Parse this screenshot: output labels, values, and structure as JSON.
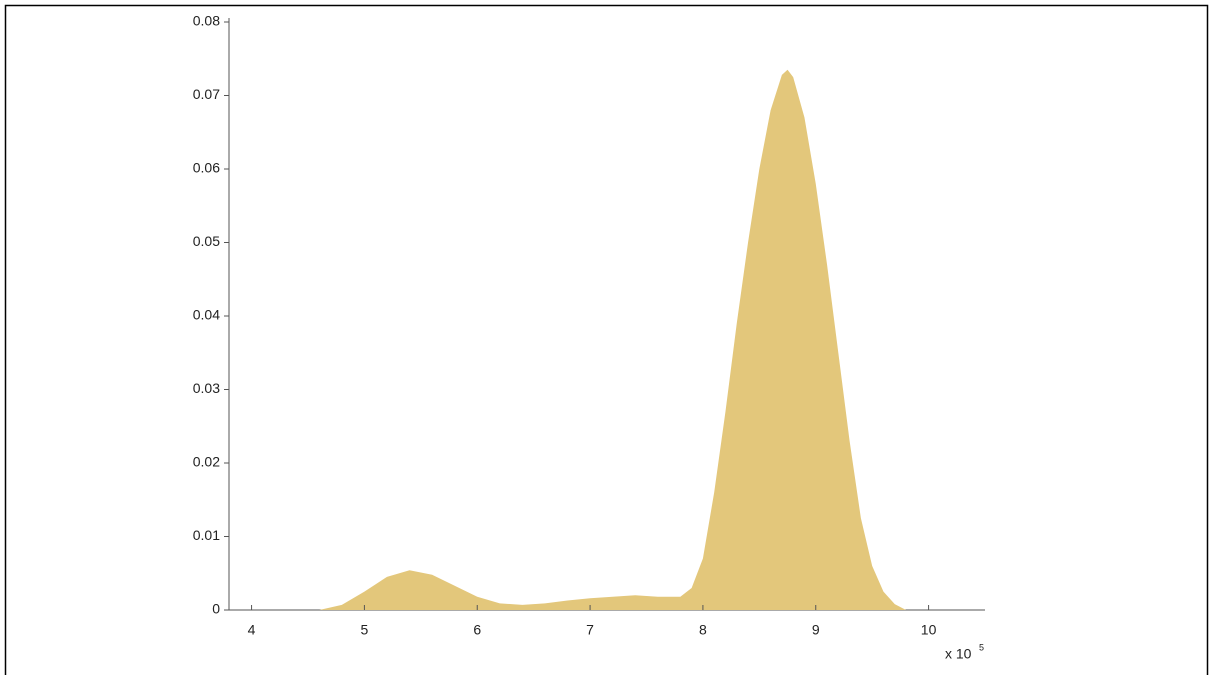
{
  "chart_data": {
    "type": "area",
    "x": [
      4.6,
      4.8,
      5.0,
      5.2,
      5.4,
      5.6,
      5.8,
      6.0,
      6.2,
      6.4,
      6.6,
      6.8,
      7.0,
      7.2,
      7.4,
      7.6,
      7.8,
      7.9,
      8.0,
      8.1,
      8.2,
      8.3,
      8.4,
      8.5,
      8.6,
      8.7,
      8.75,
      8.8,
      8.9,
      9.0,
      9.1,
      9.2,
      9.3,
      9.4,
      9.5,
      9.6,
      9.7,
      9.8
    ],
    "values": [
      0,
      0.0007,
      0.0025,
      0.0045,
      0.0054,
      0.0048,
      0.0033,
      0.0018,
      0.0009,
      0.0007,
      0.0009,
      0.0013,
      0.0016,
      0.0018,
      0.002,
      0.0018,
      0.0018,
      0.003,
      0.007,
      0.016,
      0.027,
      0.039,
      0.05,
      0.06,
      0.068,
      0.0728,
      0.0735,
      0.0725,
      0.067,
      0.058,
      0.047,
      0.035,
      0.023,
      0.0125,
      0.006,
      0.0025,
      0.0008,
      0
    ],
    "color": "#e3c77b",
    "xlim": [
      3.8,
      10.5
    ],
    "ylim": [
      0,
      0.08
    ],
    "xticks": [
      4,
      5,
      6,
      7,
      8,
      9,
      10
    ],
    "yticks": [
      0,
      0.01,
      0.02,
      0.03,
      0.04,
      0.05,
      0.06,
      0.07,
      0.08
    ],
    "x_scale_label": "x 10",
    "x_scale_exponent": "5"
  }
}
